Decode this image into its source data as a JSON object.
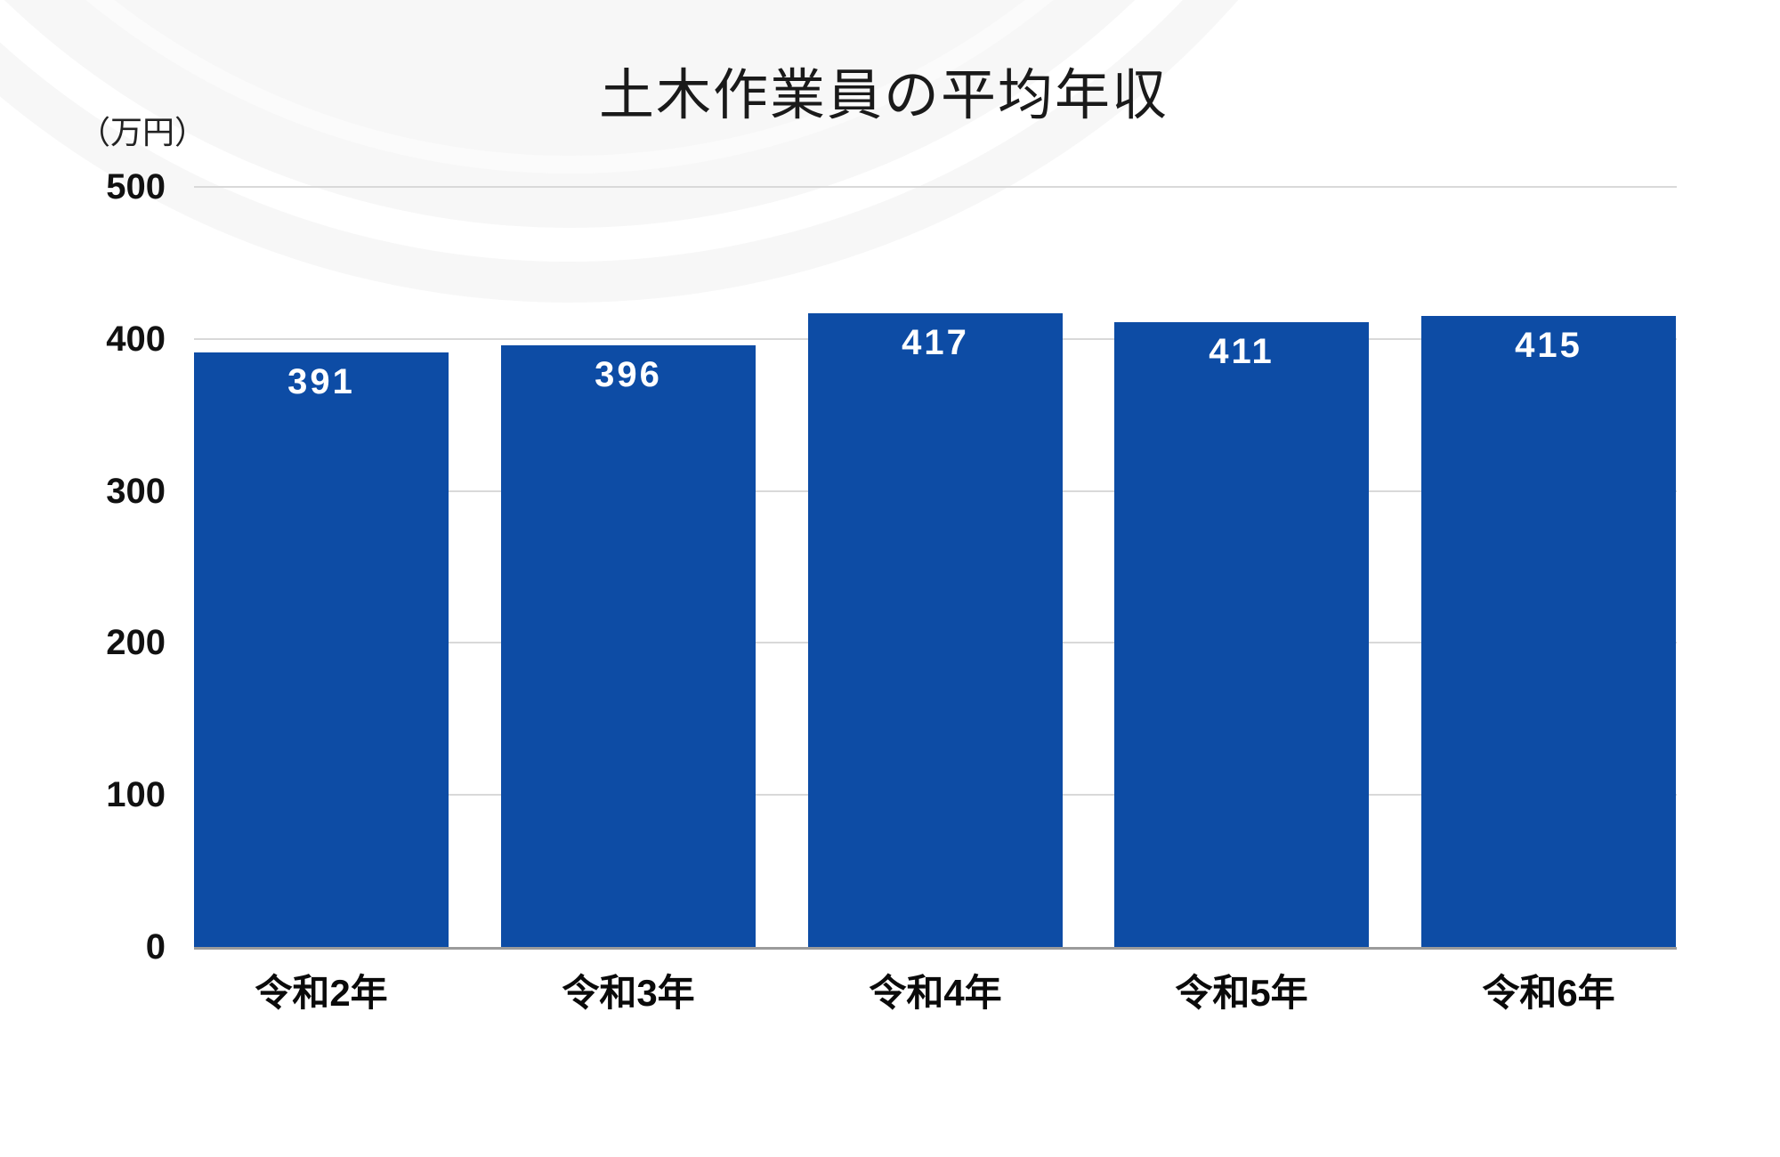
{
  "title": "土木作業員の平均年収",
  "unit_label": "（万円）",
  "chart_data": {
    "type": "bar",
    "title": "土木作業員の平均年収",
    "categories": [
      "令和2年",
      "令和3年",
      "令和4年",
      "令和5年",
      "令和6年"
    ],
    "values": [
      391,
      396,
      417,
      411,
      415
    ],
    "xlabel": "",
    "ylabel": "（万円）",
    "ylim": [
      0,
      500
    ],
    "yticks": [
      500,
      400,
      300,
      200,
      100,
      0
    ],
    "grid": true,
    "legend_position": "none",
    "colors": {
      "bar": "#0d4ca5",
      "value_label": "#ffffff",
      "gridline": "#d9d9d9",
      "baseline": "#9b9b9b",
      "text": "#111111",
      "background": "#ffffff"
    }
  }
}
